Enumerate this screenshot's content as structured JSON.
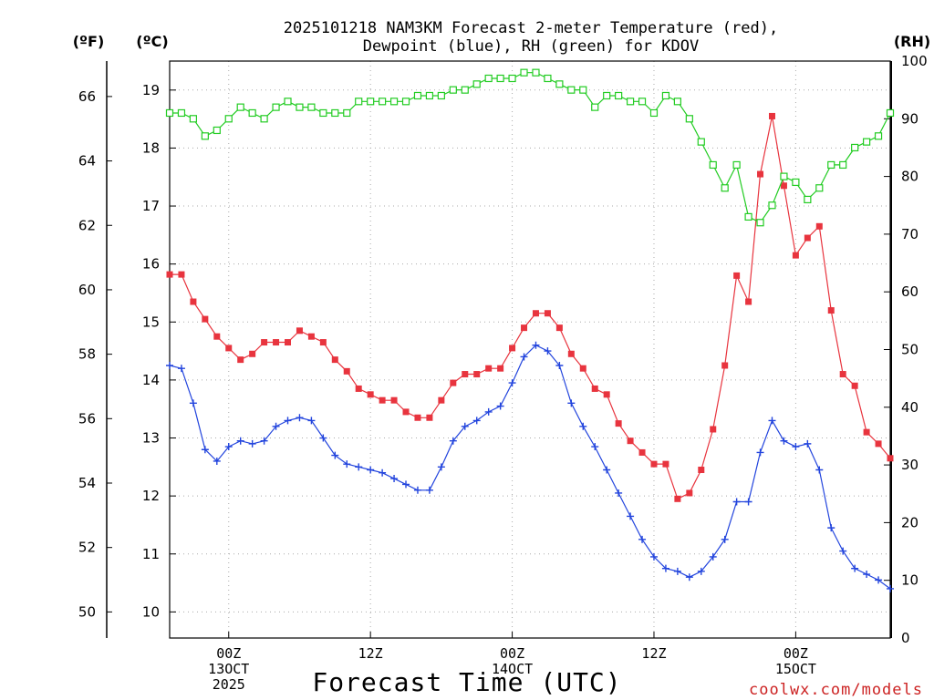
{
  "chart_data": {
    "type": "line",
    "title": [
      "2025101218 NAM3KM Forecast 2-meter Temperature (red),",
      "Dewpoint (blue), RH (green) for KDOV"
    ],
    "xlabel": "Forecast Time (UTC)",
    "units": {
      "f": "(ºF)",
      "c": "(ºC)",
      "rh": "(RH)"
    },
    "credit": "coolwx.com/models",
    "xlim": [
      19,
      80
    ],
    "ylim_c": [
      9.55,
      19.5
    ],
    "ylim_f": [
      49.19,
      67.1
    ],
    "ylim_rh": [
      0,
      100
    ],
    "c_ticks": [
      10,
      11,
      12,
      13,
      14,
      15,
      16,
      17,
      18,
      19
    ],
    "f_ticks": [
      50,
      52,
      54,
      56,
      58,
      60,
      62,
      64,
      66
    ],
    "rh_ticks": [
      0,
      10,
      20,
      30,
      40,
      50,
      60,
      70,
      80,
      90,
      100
    ],
    "x_ticks": [
      {
        "x": 24,
        "lines": [
          "00Z",
          "13OCT",
          "2025"
        ]
      },
      {
        "x": 36,
        "lines": [
          "12Z"
        ]
      },
      {
        "x": 48,
        "lines": [
          "00Z",
          "14OCT"
        ]
      },
      {
        "x": 60,
        "lines": [
          "12Z"
        ]
      },
      {
        "x": 72,
        "lines": [
          "00Z",
          "15OCT"
        ]
      }
    ],
    "x": [
      19,
      20,
      21,
      22,
      23,
      24,
      25,
      26,
      27,
      28,
      29,
      30,
      31,
      32,
      33,
      34,
      35,
      36,
      37,
      38,
      39,
      40,
      41,
      42,
      43,
      44,
      45,
      46,
      47,
      48,
      49,
      50,
      51,
      52,
      53,
      54,
      55,
      56,
      57,
      58,
      59,
      60,
      61,
      62,
      63,
      64,
      65,
      66,
      67,
      68,
      69,
      70,
      71,
      72,
      73,
      74,
      75,
      76,
      77,
      78,
      79,
      80
    ],
    "series": [
      {
        "name": "Temperature",
        "unit": "C",
        "color": "#e8343e",
        "marker": "filled-square",
        "values": [
          15.82,
          15.82,
          15.35,
          15.05,
          14.75,
          14.55,
          14.35,
          14.45,
          14.65,
          14.65,
          14.65,
          14.85,
          14.75,
          14.65,
          14.35,
          14.15,
          13.85,
          13.75,
          13.65,
          13.65,
          13.45,
          13.35,
          13.35,
          13.65,
          13.95,
          14.1,
          14.1,
          14.2,
          14.2,
          14.55,
          14.9,
          15.15,
          15.15,
          14.9,
          14.45,
          14.2,
          13.85,
          13.75,
          13.25,
          12.95,
          12.75,
          12.55,
          12.55,
          11.95,
          12.05,
          12.45,
          13.15,
          14.25,
          15.8,
          15.35,
          17.55,
          18.55,
          17.35,
          16.15,
          16.45,
          16.65,
          15.2,
          14.1,
          13.9,
          13.1,
          12.9,
          12.65
        ]
      },
      {
        "name": "Dewpoint",
        "unit": "C",
        "color": "#2244dd",
        "marker": "plus",
        "values": [
          14.25,
          14.2,
          13.6,
          12.8,
          12.6,
          12.85,
          12.95,
          12.9,
          12.95,
          13.2,
          13.3,
          13.35,
          13.3,
          13.0,
          12.7,
          12.55,
          12.5,
          12.45,
          12.4,
          12.3,
          12.2,
          12.1,
          12.1,
          12.5,
          12.95,
          13.2,
          13.3,
          13.45,
          13.55,
          13.95,
          14.4,
          14.6,
          14.5,
          14.25,
          13.6,
          13.2,
          12.85,
          12.45,
          12.05,
          11.65,
          11.25,
          10.95,
          10.75,
          10.7,
          10.6,
          10.7,
          10.95,
          11.25,
          11.9,
          11.9,
          12.75,
          13.3,
          12.95,
          12.85,
          12.9,
          12.45,
          11.45,
          11.05,
          10.75,
          10.65,
          10.55,
          10.4
        ]
      },
      {
        "name": "RH",
        "unit": "%",
        "color": "#22cc22",
        "marker": "open-square",
        "values": [
          91,
          91,
          90,
          87,
          88,
          90,
          92,
          91,
          90,
          92,
          93,
          92,
          92,
          91,
          91,
          91,
          93,
          93,
          93,
          93,
          93,
          94,
          94,
          94,
          95,
          95,
          96,
          97,
          97,
          97,
          98,
          98,
          97,
          96,
          95,
          95,
          92,
          94,
          94,
          93,
          93,
          91,
          94,
          93,
          90,
          86,
          82,
          78,
          82,
          73,
          72,
          75,
          80,
          79,
          76,
          78,
          82,
          82,
          85,
          86,
          87,
          91
        ]
      }
    ]
  }
}
